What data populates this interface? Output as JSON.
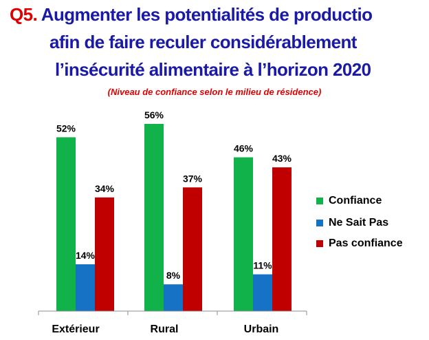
{
  "title": {
    "prefix": "Q5.",
    "line1": " Augmenter les potentialités de productio",
    "line2": "afin de  faire reculer considérablement",
    "line3": "l’insécurité alimentaire à l’horizon 2020"
  },
  "subtitle": "(Niveau de confiance selon le milieu de résidence)",
  "colors": {
    "title": "#1a1aa6",
    "accent": "#e00000",
    "Confiance": "#12b24a",
    "Ne Sait Pas": "#1572c5",
    "Pas confiance": "#c00000"
  },
  "chart_data": {
    "type": "bar",
    "categories": [
      "Extérieur",
      "Rural",
      "Urbain"
    ],
    "series": [
      {
        "name": "Confiance",
        "values": [
          52,
          56,
          46
        ]
      },
      {
        "name": "Ne Sait Pas",
        "values": [
          14,
          8,
          11
        ]
      },
      {
        "name": "Pas confiance",
        "values": [
          34,
          37,
          43
        ]
      }
    ],
    "data_labels": [
      [
        "52%",
        "56%",
        "46%"
      ],
      [
        "14%",
        "8%",
        "11%"
      ],
      [
        "34%",
        "37%",
        "43%"
      ]
    ],
    "ylim": [
      0,
      60
    ],
    "grid": false,
    "legend": "right"
  }
}
